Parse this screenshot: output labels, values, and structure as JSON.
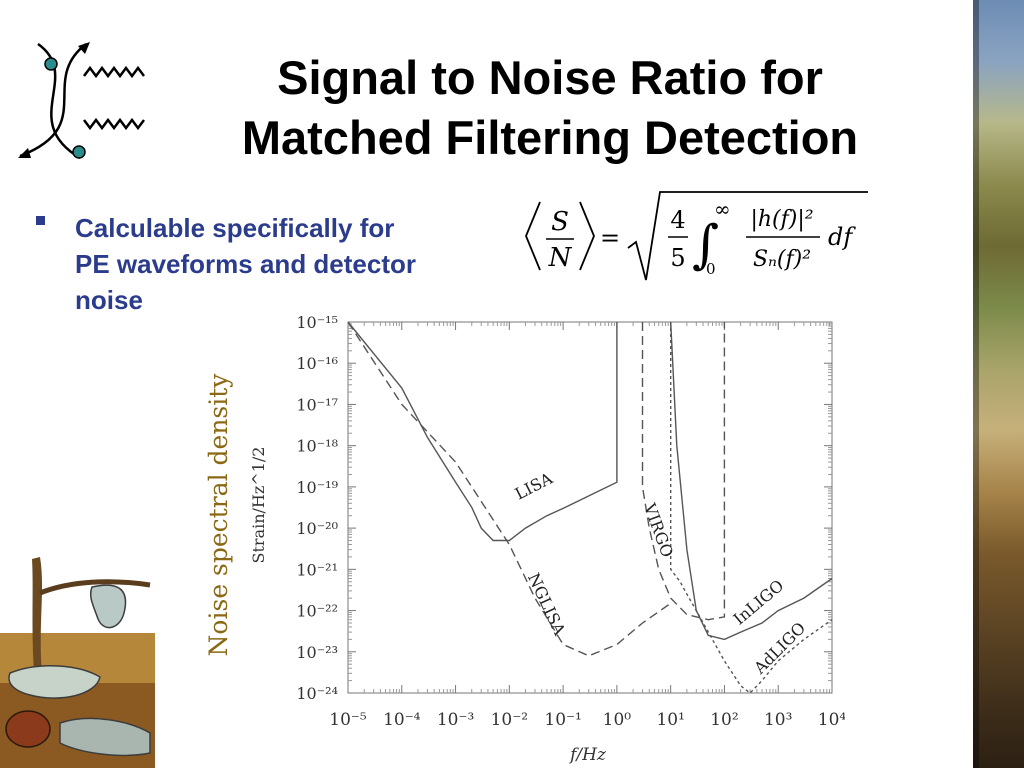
{
  "title": {
    "line1": "Signal to Noise Ratio for",
    "line2": "Matched Filtering Detection"
  },
  "bullet": {
    "line1": "Calculable specifically for",
    "line2": "PE waveforms and detector",
    "line3": "noise"
  },
  "formula": {
    "snr_num": "S",
    "snr_den": "N",
    "equals": "=",
    "frac_num": "4",
    "frac_den": "5",
    "int_upper": "∞",
    "int_lower": "0",
    "integrand_num": "|h(f)|²",
    "integrand_den": "Sₙ(f)²",
    "differential": "df"
  },
  "colors": {
    "title": "#000000",
    "bullet": "#2c3c8c",
    "annotation": "#8b6914",
    "curves": "#555555"
  },
  "icons": [
    "feynman-diagram-icon",
    "melting-clocks-image"
  ],
  "chart_data": {
    "type": "line",
    "scale": "log-log",
    "title": "",
    "xlabel": "f/Hz",
    "ylabel": "Strain/Hz^1/2",
    "annotation": "Noise spectral density",
    "xlim": [
      1e-05,
      10000.0
    ],
    "ylim": [
      1e-24,
      1e-15
    ],
    "grid": false,
    "x_ticks": [
      {
        "v": -5,
        "label": "10⁻⁵"
      },
      {
        "v": -4,
        "label": "10⁻⁴"
      },
      {
        "v": -3,
        "label": "10⁻³"
      },
      {
        "v": -2,
        "label": "10⁻²"
      },
      {
        "v": -1,
        "label": "10⁻¹"
      },
      {
        "v": 0,
        "label": "10⁰"
      },
      {
        "v": 1,
        "label": "10¹"
      },
      {
        "v": 2,
        "label": "10²"
      },
      {
        "v": 3,
        "label": "10³"
      },
      {
        "v": 4,
        "label": "10⁴"
      }
    ],
    "y_ticks": [
      {
        "v": -15,
        "label": "10⁻¹⁵"
      },
      {
        "v": -16,
        "label": "10⁻¹⁶"
      },
      {
        "v": -17,
        "label": "10⁻¹⁷"
      },
      {
        "v": -18,
        "label": "10⁻¹⁸"
      },
      {
        "v": -19,
        "label": "10⁻¹⁹"
      },
      {
        "v": -20,
        "label": "10⁻²⁰"
      },
      {
        "v": -21,
        "label": "10⁻²¹"
      },
      {
        "v": -22,
        "label": "10⁻²²"
      },
      {
        "v": -23,
        "label": "10⁻²³"
      },
      {
        "v": -24,
        "label": "10⁻²⁴"
      }
    ],
    "series": [
      {
        "name": "LISA",
        "style": "solid",
        "x": [
          1e-05,
          0.0001,
          0.0003,
          0.001,
          0.002,
          0.003,
          0.005,
          0.01,
          0.02,
          0.05,
          0.1,
          1,
          1
        ],
        "y": [
          1e-15,
          2.5e-17,
          1.6e-18,
          1.3e-19,
          3.2e-20,
          1e-20,
          5e-21,
          5e-21,
          1e-20,
          2e-20,
          3e-20,
          1.3e-19,
          1e-15
        ],
        "label_log": [
          -1.5,
          -19.1
        ],
        "label_angle": -27
      },
      {
        "name": "NGLISA",
        "style": "dashed",
        "x": [
          1e-05,
          0.0001,
          0.001,
          0.01,
          0.03,
          0.1,
          0.3,
          1,
          3,
          10
        ],
        "y": [
          1e-15,
          1e-17,
          4e-19,
          4e-21,
          2e-22,
          1.5e-23,
          8e-24,
          1.5e-23,
          5e-23,
          1.5e-22
        ],
        "label_log": [
          -1.4,
          -21.9
        ],
        "label_angle": 65
      },
      {
        "name": "VIRGO",
        "style": "dashed",
        "x": [
          3,
          3,
          4,
          6,
          10,
          20,
          50,
          100,
          100
        ],
        "y": [
          1e-15,
          1e-19,
          1e-20,
          1e-21,
          2e-22,
          8e-23,
          6e-23,
          7e-23,
          1e-15
        ],
        "label_log": [
          0.68,
          -20.1
        ],
        "label_angle": 70
      },
      {
        "name": "InLIGO",
        "style": "solid",
        "x": [
          10,
          13,
          20,
          30,
          50,
          100,
          200,
          500,
          1000,
          3000,
          10000
        ],
        "y": [
          1e-15,
          1e-18,
          3e-21,
          1e-22,
          2.5e-23,
          2e-23,
          3e-23,
          5e-23,
          1e-22,
          2e-22,
          6e-22
        ],
        "label_log": [
          2.7,
          -21.9
        ],
        "label_angle": -40
      },
      {
        "name": "AdLIGO",
        "style": "dotted",
        "x": [
          10,
          10,
          15,
          20,
          30,
          50,
          100,
          200,
          300,
          500,
          1000,
          3000,
          10000
        ],
        "y": [
          1e-15,
          1e-21,
          5e-22,
          2.5e-22,
          1e-22,
          3e-23,
          6e-24,
          1.5e-24,
          1e-24,
          2e-24,
          6e-24,
          2e-23,
          6e-23
        ],
        "label_log": [
          3.1,
          -23.0
        ],
        "label_angle": -45
      }
    ]
  }
}
